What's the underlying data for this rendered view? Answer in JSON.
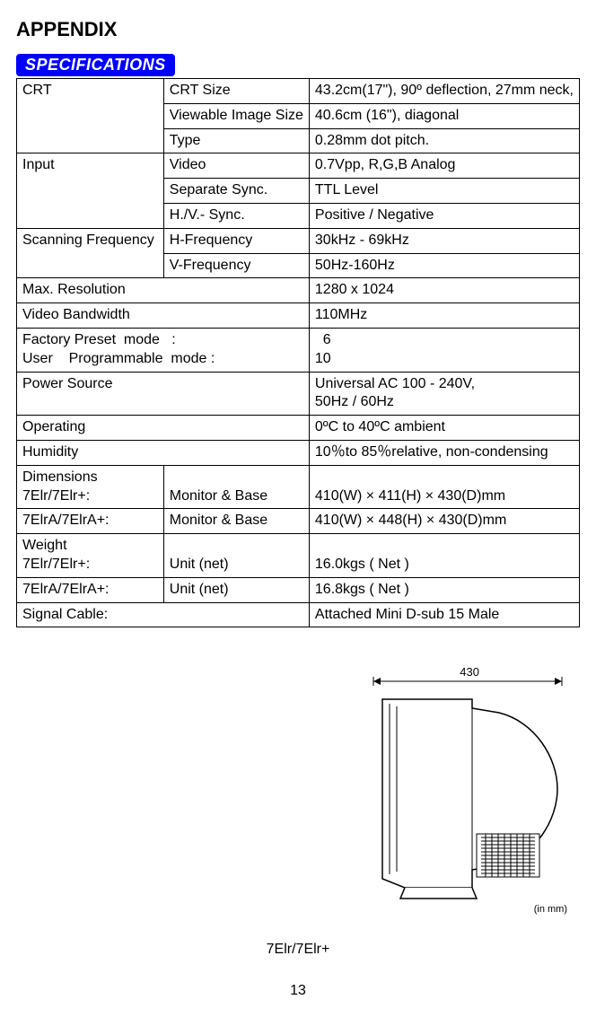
{
  "title": "APPENDIX",
  "section_tag": "SPECIFICATIONS",
  "rows": [
    {
      "g": "CRT",
      "gspan": 3,
      "p": "CRT Size",
      "v": "43.2cm(17\"), 90º deflection, 27mm neck,"
    },
    {
      "p": "Viewable Image Size",
      "v": "40.6cm (16\"), diagonal"
    },
    {
      "p": "Type",
      "v": "0.28mm dot pitch."
    },
    {
      "g": "Input",
      "gspan": 3,
      "p": "Video",
      "v": "0.7Vpp, R,G,B Analog"
    },
    {
      "p": "Separate Sync.",
      "v": "TTL Level"
    },
    {
      "p": "H./V.- Sync.",
      "v": "Positive / Negative"
    },
    {
      "g": "Scanning Frequency",
      "gspan": 2,
      "p": "H-Frequency",
      "v": "30kHz - 69kHz"
    },
    {
      "p": "V-Frequency",
      "v": "50Hz-160Hz"
    },
    {
      "full": "Max. Resolution",
      "v": "1280 x 1024"
    },
    {
      "full": "Video Bandwidth",
      "v": "110MHz"
    },
    {
      "full": "Factory Preset  mode   :\nUser    Programmable  mode :",
      "v": "  6\n10"
    },
    {
      "full": "Power Source",
      "v": "Universal AC 100 - 240V,\n50Hz / 60Hz"
    },
    {
      "full": "Operating",
      "v": "0ºC to 40ºC ambient"
    },
    {
      "full": "Humidity",
      "v": "10％to 85％relative, non-condensing"
    },
    {
      "g": "Dimensions\n7Elr/7Elr+:",
      "gspan": 1,
      "p": "\nMonitor & Base",
      "v": "\n410(W) × 411(H) × 430(D)mm"
    },
    {
      "g": "7ElrA/7ElrA+:",
      "gspan": 1,
      "p": "Monitor & Base",
      "v": "410(W) × 448(H) × 430(D)mm"
    },
    {
      "g": "Weight\n7Elr/7Elr+:",
      "gspan": 1,
      "p": "\nUnit (net)",
      "v": "\n16.0kgs ( Net )"
    },
    {
      "g": "7ElrA/7ElrA+:",
      "gspan": 1,
      "p": "Unit (net)",
      "v": "16.8kgs ( Net )"
    },
    {
      "full": "Signal Cable:",
      "v": "Attached Mini D-sub 15 Male"
    }
  ],
  "diagram": {
    "depth_label": "430",
    "unit_label": "(in mm)",
    "model_caption": "7Elr/7Elr+"
  },
  "page_number": "13",
  "colors": {
    "tag_bg": "#0000ff",
    "tag_fg": "#ffffff",
    "border": "#000000"
  }
}
